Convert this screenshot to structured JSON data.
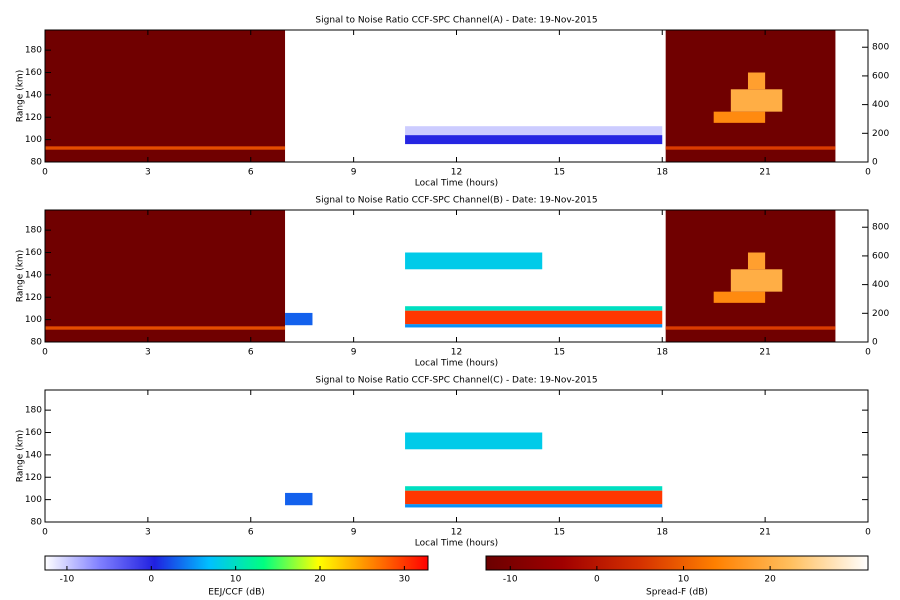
{
  "chart_data": [
    {
      "type": "heatmap",
      "title": "Signal to Noise Ratio CCF-SPC Channel(A) - Date: 19-Nov-2015",
      "xlabel": "Local Time (hours)",
      "ylabel": "Range (km)",
      "xlim": [
        0,
        24
      ],
      "xticks": [
        0,
        3,
        6,
        9,
        12,
        15,
        18,
        21,
        {
          "value": 24,
          "label": "0"
        }
      ],
      "ylim": [
        80,
        198
      ],
      "yticks": [
        80,
        100,
        120,
        140,
        160,
        180
      ],
      "y2lim": [
        0,
        920
      ],
      "y2ticks": [
        0,
        200,
        400,
        600,
        800
      ],
      "regions": [
        {
          "x": [
            0,
            7
          ],
          "y": [
            80,
            198
          ],
          "value": -12,
          "colorbar": 1
        },
        {
          "x": [
            0,
            7
          ],
          "y": [
            91,
            94
          ],
          "value": 8,
          "colorbar": 1
        },
        {
          "x": [
            18.1,
            23.05
          ],
          "y": [
            80,
            198
          ],
          "value": -12,
          "colorbar": 1
        },
        {
          "x": [
            18.1,
            23.05
          ],
          "y": [
            91,
            94
          ],
          "value": 6,
          "colorbar": 1
        },
        {
          "x": [
            19.5,
            21
          ],
          "y": [
            115,
            125
          ],
          "value": 15,
          "colorbar": 1
        },
        {
          "x": [
            20,
            21.5
          ],
          "y": [
            125,
            145
          ],
          "value": 20,
          "colorbar": 1
        },
        {
          "x": [
            20.5,
            21
          ],
          "y": [
            145,
            160
          ],
          "value": 18,
          "colorbar": 1
        },
        {
          "x": [
            10.5,
            18
          ],
          "y": [
            104,
            112
          ],
          "value": -10,
          "colorbar": 0
        },
        {
          "x": [
            10.5,
            18
          ],
          "y": [
            96,
            104
          ],
          "value": 0,
          "colorbar": 0
        }
      ]
    },
    {
      "type": "heatmap",
      "title": "Signal to Noise Ratio CCF-SPC Channel(B) - Date: 19-Nov-2015",
      "xlabel": "Local Time (hours)",
      "ylabel": "Range (km)",
      "xlim": [
        0,
        24
      ],
      "xticks": [
        0,
        3,
        6,
        9,
        12,
        15,
        18,
        21,
        {
          "value": 24,
          "label": "0"
        }
      ],
      "ylim": [
        80,
        198
      ],
      "yticks": [
        80,
        100,
        120,
        140,
        160,
        180
      ],
      "y2lim": [
        0,
        920
      ],
      "y2ticks": [
        0,
        200,
        400,
        600,
        800
      ],
      "regions": [
        {
          "x": [
            0,
            7
          ],
          "y": [
            80,
            198
          ],
          "value": -12,
          "colorbar": 1
        },
        {
          "x": [
            0,
            7
          ],
          "y": [
            91,
            94
          ],
          "value": 8,
          "colorbar": 1
        },
        {
          "x": [
            18.1,
            23.05
          ],
          "y": [
            80,
            198
          ],
          "value": -12,
          "colorbar": 1
        },
        {
          "x": [
            18.1,
            23.05
          ],
          "y": [
            91,
            94
          ],
          "value": 6,
          "colorbar": 1
        },
        {
          "x": [
            19.5,
            21
          ],
          "y": [
            115,
            125
          ],
          "value": 15,
          "colorbar": 1
        },
        {
          "x": [
            20,
            21.5
          ],
          "y": [
            125,
            145
          ],
          "value": 20,
          "colorbar": 1
        },
        {
          "x": [
            20.5,
            21
          ],
          "y": [
            145,
            160
          ],
          "value": 18,
          "colorbar": 1
        },
        {
          "x": [
            10.5,
            18
          ],
          "y": [
            93,
            96
          ],
          "value": 5,
          "colorbar": 0
        },
        {
          "x": [
            10.5,
            18
          ],
          "y": [
            108,
            112
          ],
          "value": 10,
          "colorbar": 0
        },
        {
          "x": [
            10.5,
            18
          ],
          "y": [
            96,
            108
          ],
          "value": 30,
          "colorbar": 0
        },
        {
          "x": [
            10.5,
            14.5
          ],
          "y": [
            145,
            160
          ],
          "value": 8,
          "colorbar": 0
        },
        {
          "x": [
            7,
            7.8
          ],
          "y": [
            95,
            106
          ],
          "value": 3,
          "colorbar": 0
        }
      ]
    },
    {
      "type": "heatmap",
      "title": "Signal to Noise Ratio CCF-SPC Channel(C) - Date: 19-Nov-2015",
      "xlabel": "Local Time (hours)",
      "ylabel": "Range (km)",
      "xlim": [
        0,
        24
      ],
      "xticks": [
        0,
        3,
        6,
        9,
        12,
        15,
        18,
        21,
        {
          "value": 24,
          "label": "0"
        }
      ],
      "ylim": [
        80,
        198
      ],
      "yticks": [
        80,
        100,
        120,
        140,
        160,
        180
      ],
      "regions": [
        {
          "x": [
            10.5,
            18
          ],
          "y": [
            93,
            96
          ],
          "value": 5,
          "colorbar": 0
        },
        {
          "x": [
            10.5,
            18
          ],
          "y": [
            108,
            112
          ],
          "value": 10,
          "colorbar": 0
        },
        {
          "x": [
            10.5,
            18
          ],
          "y": [
            96,
            108
          ],
          "value": 30,
          "colorbar": 0
        },
        {
          "x": [
            10.5,
            14.5
          ],
          "y": [
            145,
            160
          ],
          "value": 8,
          "colorbar": 0
        },
        {
          "x": [
            7,
            7.8
          ],
          "y": [
            95,
            106
          ],
          "value": 3,
          "colorbar": 0
        }
      ]
    }
  ],
  "colorbars": [
    {
      "label": "EEJ/CCF (dB)",
      "lim": [
        -12.6,
        32.8
      ],
      "ticks": [
        -10,
        0,
        10,
        20,
        30
      ],
      "colors": [
        "#ffffff",
        "#8080ff",
        "#2020e0",
        "#00c0ff",
        "#00ff80",
        "#ffff00",
        "#ff8000",
        "#ff0000"
      ]
    },
    {
      "label": "Spread-F (dB)",
      "lim": [
        -12.8,
        31.3
      ],
      "ticks": [
        -10,
        0,
        10,
        20
      ],
      "colors": [
        "#6b0000",
        "#a00000",
        "#d43000",
        "#ff8000",
        "#ffc060",
        "#ffffff"
      ]
    }
  ]
}
